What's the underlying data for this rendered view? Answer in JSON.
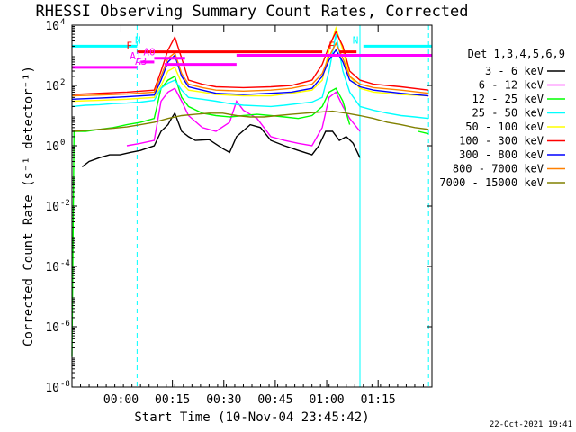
{
  "chart_data": {
    "type": "line",
    "title": "RHESSI Observing Summary Count Rates, Corrected",
    "xlabel": "Start Time (10-Nov-04 23:45:42)",
    "ylabel": "Corrected Count Rate (s⁻¹ detector⁻¹)",
    "y_scale": "log",
    "ylim": [
      1e-08,
      10000
    ],
    "xlim_minutes_from_start": [
      0,
      105
    ],
    "x_ticks": [
      {
        "label": "00:00",
        "minute": 14.3
      },
      {
        "label": "00:15",
        "minute": 29.3
      },
      {
        "label": "00:30",
        "minute": 44.3
      },
      {
        "label": "00:45",
        "minute": 59.3
      },
      {
        "label": "01:00",
        "minute": 74.3
      },
      {
        "label": "01:15",
        "minute": 89.3
      }
    ],
    "y_ticks": [
      {
        "label": "10",
        "exp": "4",
        "value": 10000
      },
      {
        "label": "10",
        "exp": "2",
        "value": 100
      },
      {
        "label": "10",
        "exp": "0",
        "value": 1
      },
      {
        "label": "10",
        "exp": "-2",
        "value": 0.01
      },
      {
        "label": "10",
        "exp": "-4",
        "value": 0.0001
      },
      {
        "label": "10",
        "exp": "-6",
        "value": 1e-06
      },
      {
        "label": "10",
        "exp": "-8",
        "value": 1e-08
      }
    ],
    "legend_header": "Det 1,3,4,5,6,9",
    "legend_position": "right",
    "series": [
      {
        "name": "3 - 6 keV",
        "color": "#000000",
        "points": [
          [
            0,
            null
          ],
          [
            1,
            null
          ],
          [
            2,
            null
          ],
          [
            3,
            0.2
          ],
          [
            5,
            0.3
          ],
          [
            8,
            0.4
          ],
          [
            11,
            0.5
          ],
          [
            14,
            0.5
          ],
          [
            17,
            0.6
          ],
          [
            20,
            0.7
          ],
          [
            24,
            1.0
          ],
          [
            26,
            3
          ],
          [
            28,
            5
          ],
          [
            29,
            8
          ],
          [
            30,
            12
          ],
          [
            31,
            6
          ],
          [
            32,
            3
          ],
          [
            34,
            2
          ],
          [
            36,
            1.5
          ],
          [
            40,
            1.6
          ],
          [
            44,
            0.8
          ],
          [
            46,
            0.6
          ],
          [
            48,
            2
          ],
          [
            52,
            5
          ],
          [
            55,
            4
          ],
          [
            58,
            1.5
          ],
          [
            62,
            1.0
          ],
          [
            66,
            0.7
          ],
          [
            70,
            0.5
          ],
          [
            72,
            1
          ],
          [
            74,
            3
          ],
          [
            76,
            3
          ],
          [
            78,
            1.5
          ],
          [
            80,
            2
          ],
          [
            82,
            1.2
          ],
          [
            84,
            0.4
          ],
          [
            85,
            null
          ]
        ]
      },
      {
        "name": "6 - 12 keV",
        "color": "#ff00ff",
        "points": [
          [
            0,
            null
          ],
          [
            15,
            null
          ],
          [
            16,
            1.0
          ],
          [
            20,
            1.2
          ],
          [
            24,
            1.5
          ],
          [
            26,
            30
          ],
          [
            28,
            60
          ],
          [
            30,
            80
          ],
          [
            32,
            30
          ],
          [
            34,
            10
          ],
          [
            38,
            4
          ],
          [
            42,
            3
          ],
          [
            46,
            6
          ],
          [
            48,
            30
          ],
          [
            50,
            15
          ],
          [
            54,
            8
          ],
          [
            58,
            2
          ],
          [
            62,
            1.5
          ],
          [
            66,
            1.2
          ],
          [
            70,
            1.0
          ],
          [
            73,
            4
          ],
          [
            75,
            40
          ],
          [
            77,
            60
          ],
          [
            79,
            20
          ],
          [
            81,
            8
          ],
          [
            84,
            3
          ],
          [
            85,
            null
          ]
        ]
      },
      {
        "name": "12 - 25 keV",
        "color": "#00ff00",
        "points": [
          [
            0,
            1e-07
          ],
          [
            0.6,
            3
          ],
          [
            4,
            3
          ],
          [
            8,
            3.5
          ],
          [
            12,
            4
          ],
          [
            16,
            5
          ],
          [
            20,
            6
          ],
          [
            24,
            8
          ],
          [
            26,
            80
          ],
          [
            28,
            150
          ],
          [
            30,
            200
          ],
          [
            32,
            40
          ],
          [
            34,
            20
          ],
          [
            38,
            12
          ],
          [
            42,
            10
          ],
          [
            46,
            9
          ],
          [
            50,
            10
          ],
          [
            54,
            11
          ],
          [
            58,
            10
          ],
          [
            62,
            9
          ],
          [
            66,
            8
          ],
          [
            70,
            10
          ],
          [
            73,
            20
          ],
          [
            75,
            60
          ],
          [
            77,
            80
          ],
          [
            79,
            30
          ],
          [
            81,
            5
          ],
          [
            83,
            null
          ],
          [
            101,
            3
          ],
          [
            104,
            2.5
          ]
        ]
      },
      {
        "name": "25 - 50 keV",
        "color": "#00ffff",
        "points": [
          [
            0,
            20
          ],
          [
            4,
            22
          ],
          [
            8,
            23
          ],
          [
            12,
            25
          ],
          [
            16,
            26
          ],
          [
            20,
            28
          ],
          [
            24,
            32
          ],
          [
            26,
            80
          ],
          [
            28,
            120
          ],
          [
            30,
            150
          ],
          [
            32,
            70
          ],
          [
            34,
            40
          ],
          [
            38,
            35
          ],
          [
            42,
            30
          ],
          [
            46,
            25
          ],
          [
            50,
            22
          ],
          [
            54,
            21
          ],
          [
            58,
            20
          ],
          [
            62,
            22
          ],
          [
            66,
            25
          ],
          [
            70,
            28
          ],
          [
            73,
            40
          ],
          [
            75,
            300
          ],
          [
            77,
            5000
          ],
          [
            79,
            300
          ],
          [
            81,
            60
          ],
          [
            84,
            20
          ],
          [
            88,
            15
          ],
          [
            92,
            12
          ],
          [
            96,
            10
          ],
          [
            100,
            9
          ],
          [
            104,
            8
          ]
        ]
      },
      {
        "name": "50 - 100 keV",
        "color": "#ffff00",
        "points": [
          [
            0,
            30
          ],
          [
            8,
            32
          ],
          [
            16,
            35
          ],
          [
            24,
            40
          ],
          [
            26,
            100
          ],
          [
            28,
            300
          ],
          [
            30,
            400
          ],
          [
            32,
            120
          ],
          [
            34,
            70
          ],
          [
            38,
            60
          ],
          [
            42,
            50
          ],
          [
            50,
            45
          ],
          [
            58,
            45
          ],
          [
            64,
            55
          ],
          [
            70,
            70
          ],
          [
            73,
            150
          ],
          [
            75,
            1500
          ],
          [
            77,
            8000
          ],
          [
            79,
            1500
          ],
          [
            81,
            200
          ],
          [
            84,
            80
          ],
          [
            88,
            60
          ],
          [
            96,
            50
          ],
          [
            104,
            45
          ]
        ]
      },
      {
        "name": "100 - 300 keV",
        "color": "#ff0000",
        "points": [
          [
            0,
            50
          ],
          [
            8,
            55
          ],
          [
            16,
            60
          ],
          [
            24,
            70
          ],
          [
            26,
            300
          ],
          [
            28,
            1500
          ],
          [
            30,
            4000
          ],
          [
            32,
            800
          ],
          [
            34,
            150
          ],
          [
            38,
            110
          ],
          [
            42,
            90
          ],
          [
            50,
            85
          ],
          [
            58,
            90
          ],
          [
            64,
            100
          ],
          [
            70,
            150
          ],
          [
            73,
            500
          ],
          [
            75,
            2000
          ],
          [
            77,
            6000
          ],
          [
            79,
            2000
          ],
          [
            81,
            300
          ],
          [
            84,
            150
          ],
          [
            88,
            110
          ],
          [
            96,
            90
          ],
          [
            104,
            70
          ]
        ]
      },
      {
        "name": "300 - 800 keV",
        "color": "#0000ff",
        "points": [
          [
            0,
            35
          ],
          [
            8,
            38
          ],
          [
            16,
            42
          ],
          [
            24,
            48
          ],
          [
            26,
            150
          ],
          [
            28,
            600
          ],
          [
            30,
            1000
          ],
          [
            32,
            200
          ],
          [
            34,
            90
          ],
          [
            38,
            70
          ],
          [
            42,
            55
          ],
          [
            50,
            50
          ],
          [
            58,
            55
          ],
          [
            64,
            60
          ],
          [
            70,
            80
          ],
          [
            73,
            200
          ],
          [
            75,
            700
          ],
          [
            77,
            1500
          ],
          [
            79,
            600
          ],
          [
            81,
            150
          ],
          [
            84,
            90
          ],
          [
            88,
            70
          ],
          [
            96,
            55
          ],
          [
            104,
            45
          ]
        ]
      },
      {
        "name": "800 - 7000 keV",
        "color": "#ff8000",
        "points": [
          [
            0,
            45
          ],
          [
            8,
            48
          ],
          [
            16,
            52
          ],
          [
            24,
            60
          ],
          [
            26,
            200
          ],
          [
            28,
            800
          ],
          [
            30,
            1200
          ],
          [
            32,
            250
          ],
          [
            34,
            110
          ],
          [
            38,
            85
          ],
          [
            42,
            70
          ],
          [
            50,
            65
          ],
          [
            58,
            70
          ],
          [
            64,
            80
          ],
          [
            70,
            110
          ],
          [
            73,
            250
          ],
          [
            75,
            900
          ],
          [
            77,
            2500
          ],
          [
            79,
            800
          ],
          [
            81,
            200
          ],
          [
            84,
            110
          ],
          [
            88,
            85
          ],
          [
            96,
            70
          ],
          [
            104,
            55
          ]
        ]
      },
      {
        "name": "7000 - 15000 keV",
        "color": "#808000",
        "points": [
          [
            0,
            3
          ],
          [
            4,
            3.2
          ],
          [
            8,
            3.5
          ],
          [
            12,
            3.8
          ],
          [
            16,
            4.2
          ],
          [
            20,
            5
          ],
          [
            24,
            6
          ],
          [
            28,
            8
          ],
          [
            32,
            10
          ],
          [
            36,
            11
          ],
          [
            40,
            12
          ],
          [
            44,
            12
          ],
          [
            48,
            10
          ],
          [
            52,
            9
          ],
          [
            56,
            9
          ],
          [
            60,
            10
          ],
          [
            64,
            11
          ],
          [
            68,
            12
          ],
          [
            72,
            13
          ],
          [
            76,
            14
          ],
          [
            80,
            12
          ],
          [
            84,
            10
          ],
          [
            88,
            8
          ],
          [
            92,
            6
          ],
          [
            96,
            5
          ],
          [
            100,
            4
          ],
          [
            104,
            3.5
          ]
        ]
      }
    ],
    "attenuator_bars": [
      {
        "label": "N",
        "color": "#00ffff",
        "minute_start": 0,
        "minute_end": 19,
        "value": 2000
      },
      {
        "label": "N",
        "color": "#00ffff",
        "minute_start": 85,
        "minute_end": 105,
        "value": 2000
      },
      {
        "label": "F",
        "color": "#ff0000",
        "minute_start": 19,
        "minute_end": 73,
        "value": 1300
      },
      {
        "label": "F",
        "color": "#ff0000",
        "minute_start": 78,
        "minute_end": 83,
        "value": 1300
      },
      {
        "label": "A0",
        "color": "#ff00ff",
        "minute_start": 24,
        "minute_end": 33,
        "value": 800
      },
      {
        "label": "A1",
        "color": "#ff00ff",
        "minute_start": 20,
        "minute_end": 24,
        "value": 600
      },
      {
        "label": "A3",
        "color": "#ff00ff",
        "minute_start": 0,
        "minute_end": 19,
        "value": 400
      },
      {
        "label": "",
        "color": "#ff00ff",
        "minute_start": 48,
        "minute_end": 105,
        "value": 1000
      },
      {
        "label": "",
        "color": "#ff00ff",
        "minute_start": 27,
        "minute_end": 48,
        "value": 500
      }
    ],
    "vertical_lines": [
      {
        "minute": 19,
        "color": "#00ffff",
        "style": "dashed"
      },
      {
        "minute": 84,
        "color": "#00ffff",
        "style": "solid"
      },
      {
        "minute": 104,
        "color": "#00ffff",
        "style": "dashed"
      }
    ],
    "footer_date": "22-Oct-2021 19:41"
  }
}
